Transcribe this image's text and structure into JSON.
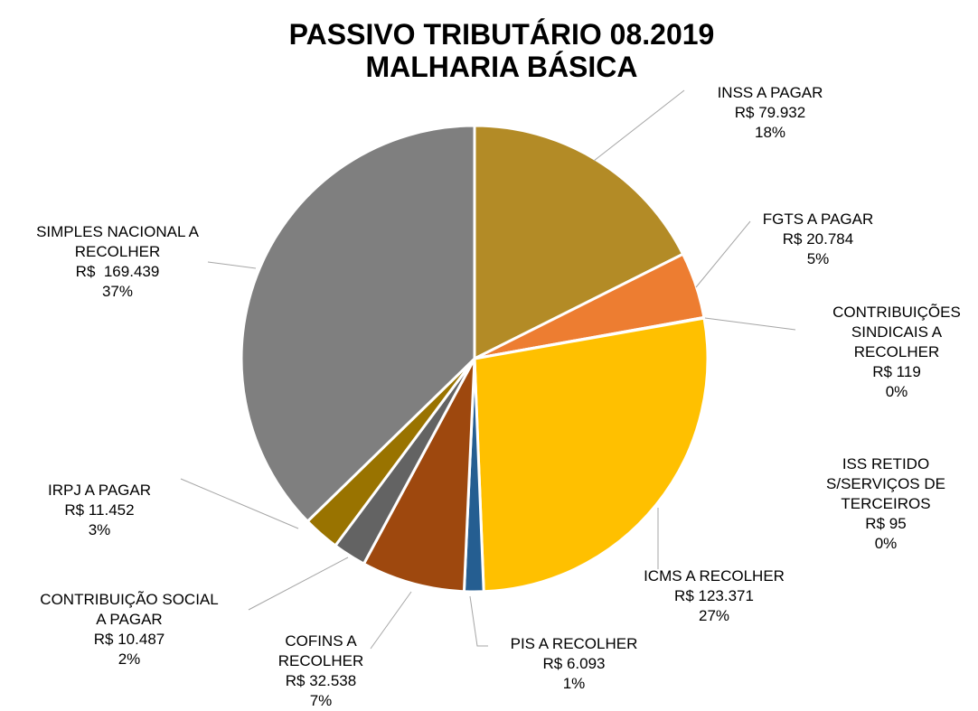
{
  "chart_data": {
    "type": "pie",
    "title": "PASSIVO TRIBUTÁRIO 08.2019\nMALHARIA BÁSICA",
    "categories": [
      "INSS A PAGAR",
      "FGTS A PAGAR",
      "CONTRIBUIÇÕES\nSINDICAIS A\nRECOLHER",
      "ISS RETIDO\nS/SERVIÇOS DE\nTERCEIROS",
      "ICMS A RECOLHER",
      "PIS A RECOLHER",
      "COFINS A\nRECOLHER",
      "CONTRIBUIÇÃO SOCIAL\nA PAGAR",
      "IRPJ A PAGAR",
      "SIMPLES NACIONAL A\nRECOLHER"
    ],
    "values": [
      79932,
      20784,
      119,
      95,
      123371,
      6093,
      32538,
      10487,
      11452,
      169439
    ],
    "value_labels": [
      "R$ 79.932",
      "R$ 20.784",
      "R$ 119",
      "R$ 95",
      "R$ 123.371",
      "R$ 6.093",
      "R$ 32.538",
      "R$ 10.487",
      "R$ 11.452",
      "R$  169.439"
    ],
    "percent_labels": [
      "18%",
      "5%",
      "0%",
      "0%",
      "27%",
      "1%",
      "7%",
      "2%",
      "3%",
      "37%"
    ],
    "colors": [
      "#b38b26",
      "#ed7d31",
      "#a5a5a5",
      "#4472c4",
      "#ffc000",
      "#255e91",
      "#9e480e",
      "#636363",
      "#997300",
      "#7f7f7f"
    ]
  }
}
